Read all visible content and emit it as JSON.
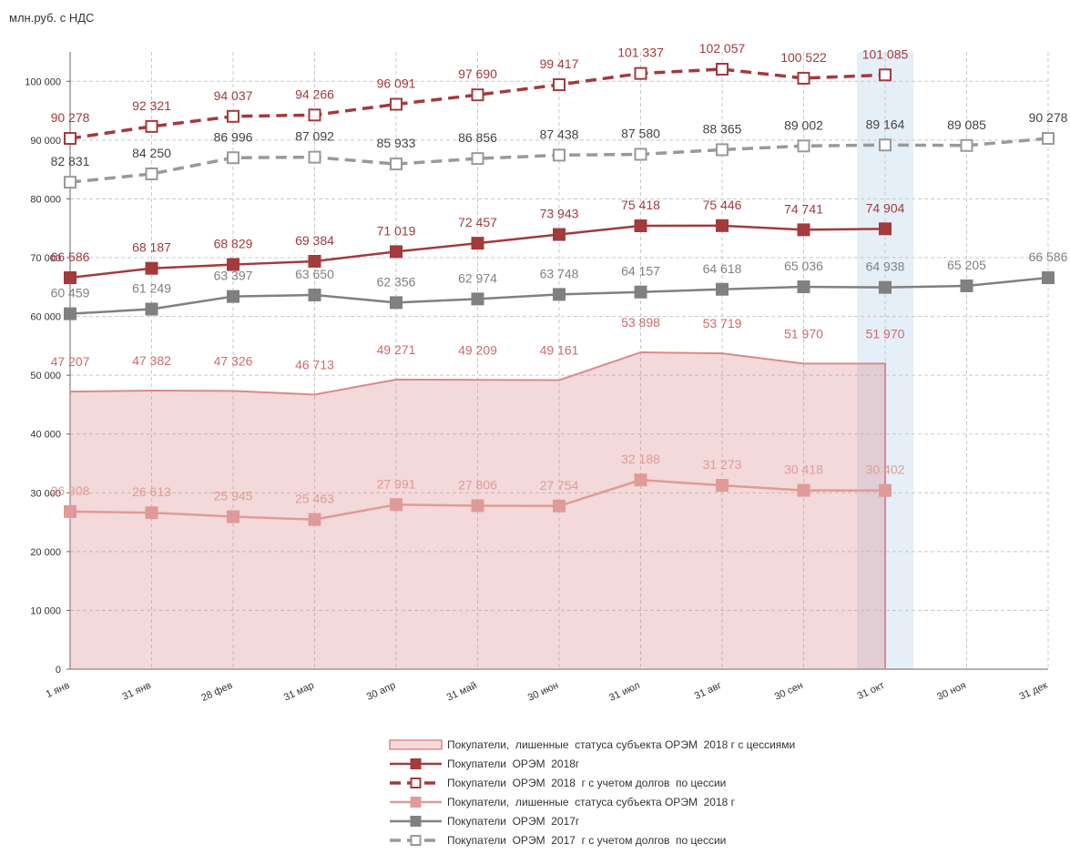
{
  "chart_data": {
    "type": "line",
    "y_unit_label": "млн.руб. с НДС",
    "categories": [
      "1 янв",
      "31 янв",
      "28 фев",
      "31 мар",
      "30 апр",
      "31 май",
      "30 июн",
      "31 июл",
      "31 авг",
      "30 сен",
      "31 окт",
      "30 ноя",
      "31 дек"
    ],
    "ylim": [
      0,
      105000
    ],
    "yticks": [
      0,
      {
        "value": 10000,
        "label": "10 000"
      },
      {
        "value": 20000,
        "label": "20 000"
      },
      {
        "value": 30000,
        "label": "30 000"
      },
      {
        "value": 40000,
        "label": "40 000"
      },
      {
        "value": 50000,
        "label": "50 000"
      },
      {
        "value": 60000,
        "label": "60 000"
      },
      {
        "value": 70000,
        "label": "70 000"
      },
      {
        "value": 80000,
        "label": "80 000"
      },
      {
        "value": 90000,
        "label": "90 000"
      },
      {
        "value": 100000,
        "label": "100 000"
      }
    ],
    "grid": true,
    "highlight_index": 10,
    "series": [
      {
        "name": "Покупатели,  лишенные  статуса субъекта ОРЭМ  2018 г с цессиями",
        "kind": "area",
        "color": "#d98a8a",
        "values": [
          47207,
          47382,
          47326,
          46713,
          49271,
          49209,
          49161,
          53898,
          53719,
          51970,
          51970,
          null,
          null
        ],
        "value_labels": [
          "47 207",
          "47 382",
          "47 326",
          "46 713",
          "49 271",
          "49 209",
          "49 161",
          "53 898",
          "53 719",
          "51 970",
          "51 970",
          null,
          null
        ]
      },
      {
        "name": "Покупатели  ОРЭМ  2018г",
        "kind": "line",
        "marker": "filled",
        "color": "#a33a3c",
        "values": [
          66586,
          68187,
          68829,
          69384,
          71019,
          72457,
          73943,
          75418,
          75446,
          74741,
          74904,
          null,
          null
        ],
        "value_labels": [
          "66 586",
          "68 187",
          "68 829",
          "69 384",
          "71 019",
          "72 457",
          "73 943",
          "75 418",
          "75 446",
          "74 741",
          "74 904",
          null,
          null
        ]
      },
      {
        "name": "Покупатели  ОРЭМ  2018  г с учетом долгов  по цессии",
        "kind": "line",
        "dashed": true,
        "marker": "open",
        "color": "#a33a3c",
        "values": [
          90278,
          92321,
          94037,
          94266,
          96091,
          97690,
          99417,
          101337,
          102057,
          100522,
          101085,
          null,
          null
        ],
        "value_labels": [
          "90 278",
          "92 321",
          "94 037",
          "94 266",
          "96 091",
          "97 690",
          "99 417",
          "101 337",
          "102 057",
          "100 522",
          "101 085",
          null,
          null
        ]
      },
      {
        "name": "Покупатели,  лишенные  статуса субъекта ОРЭМ  2018 г",
        "kind": "line",
        "marker": "filled",
        "color": "#e09a98",
        "values": [
          26808,
          26613,
          25945,
          25463,
          27991,
          27806,
          27754,
          32188,
          31273,
          30418,
          30402,
          null,
          null
        ],
        "value_labels": [
          "26 808",
          "26 613",
          "25 945",
          "25 463",
          "27 991",
          "27 806",
          "27 754",
          "32 188",
          "31 273",
          "30 418",
          "30 402",
          null,
          null
        ]
      },
      {
        "name": "Покупатели  ОРЭМ  2017г",
        "kind": "line",
        "marker": "filled",
        "color": "#808080",
        "values": [
          60459,
          61249,
          63397,
          63650,
          62356,
          62974,
          63748,
          64157,
          64618,
          65036,
          64938,
          65205,
          66586
        ],
        "value_labels": [
          "60 459",
          "61 249",
          "63 397",
          "63 650",
          "62 356",
          "62 974",
          "63 748",
          "64 157",
          "64 618",
          "65 036",
          "64 938",
          "65 205",
          "66 586"
        ]
      },
      {
        "name": "Покупатели  ОРЭМ  2017  г с учетом долгов  по цессии",
        "kind": "line",
        "dashed": true,
        "marker": "open",
        "color": "#999999",
        "values": [
          82831,
          84250,
          86996,
          87092,
          85933,
          86856,
          87438,
          87580,
          88365,
          89002,
          89164,
          89085,
          90278
        ],
        "value_labels": [
          "82 831",
          "84 250",
          "86 996",
          "87 092",
          "85 933",
          "86 856",
          "87 438",
          "87 580",
          "88 365",
          "89 002",
          "89 164",
          "89 085",
          "90 278"
        ]
      }
    ]
  }
}
